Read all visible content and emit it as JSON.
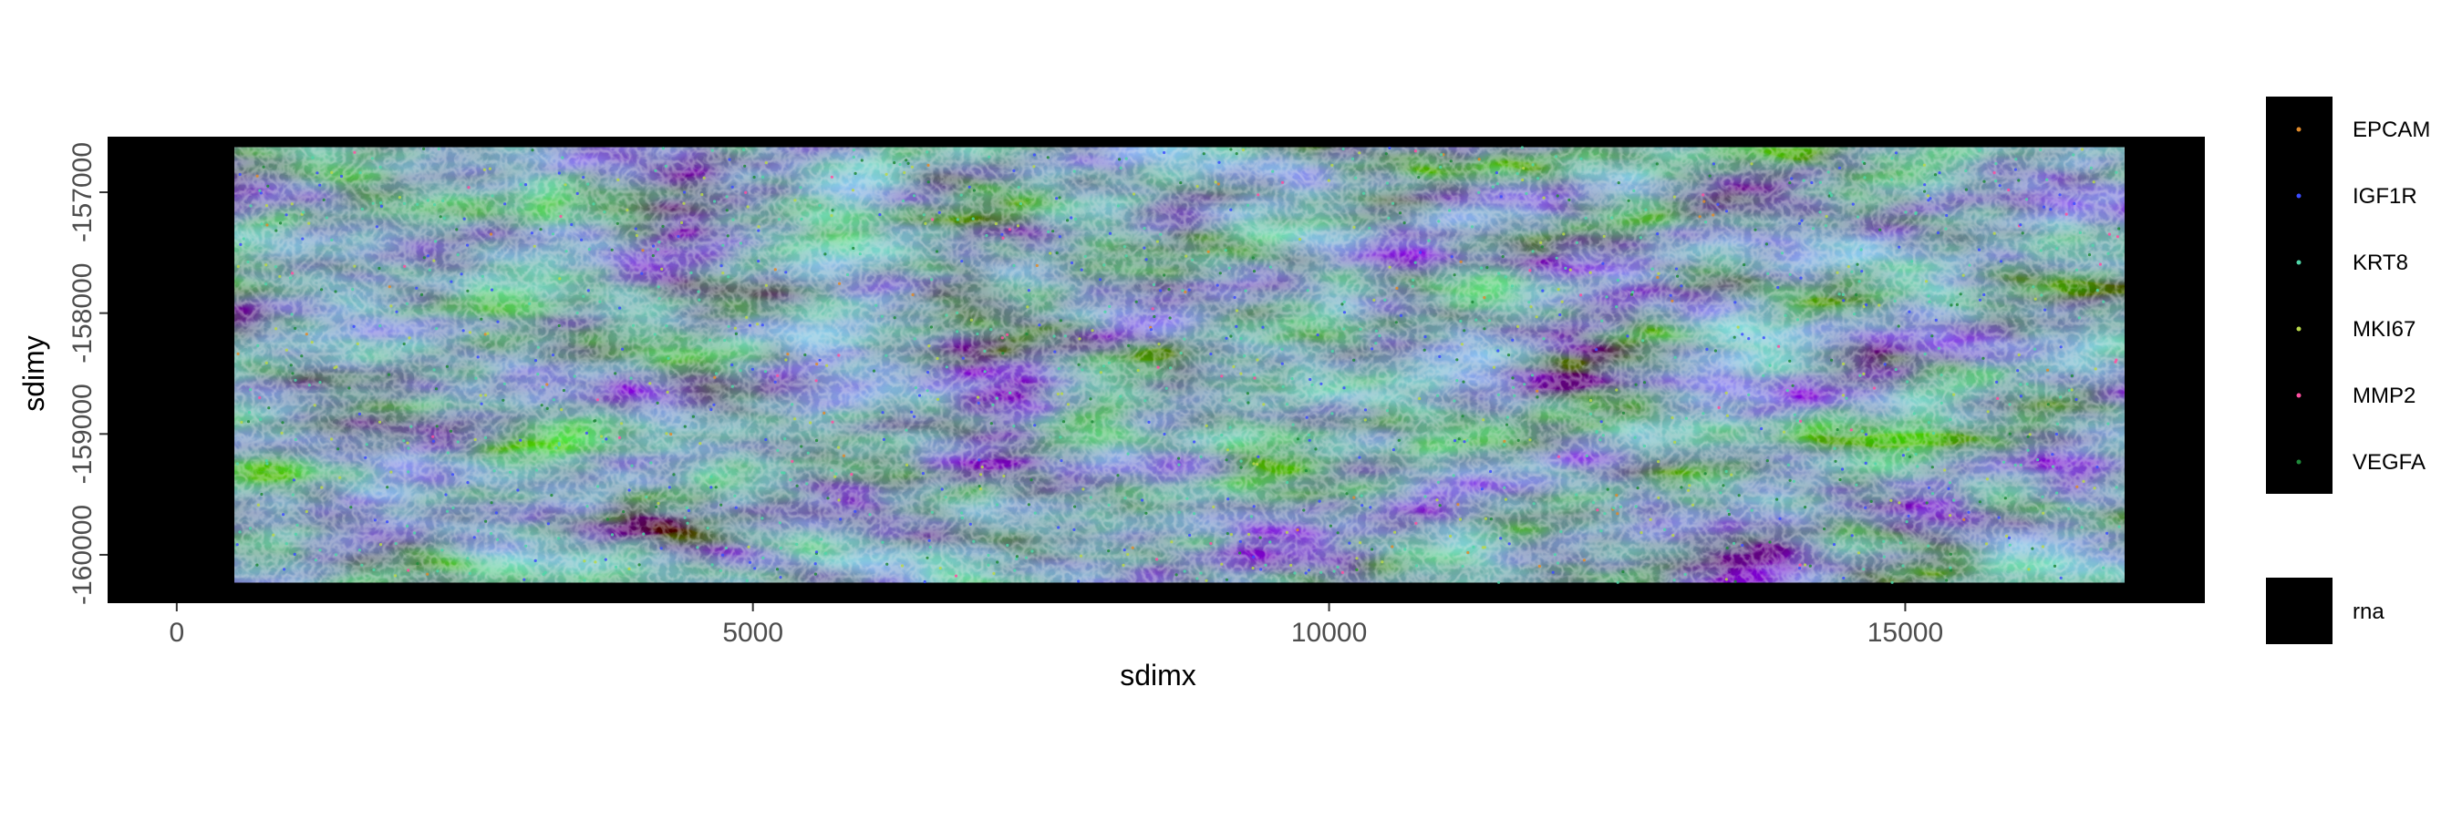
{
  "chart_data": {
    "type": "scatter",
    "title": "",
    "xlabel": "sdimx",
    "ylabel": "sdimy",
    "xlim": [
      -600,
      17600
    ],
    "ylim": [
      -160400,
      -156540
    ],
    "x_ticks": [
      0,
      5000,
      10000,
      15000
    ],
    "x_tick_labels": [
      "0",
      "5000",
      "10000",
      "15000"
    ],
    "y_ticks": [
      -160000,
      -159000,
      -158000,
      -157000
    ],
    "y_tick_labels": [
      "-160000",
      "-159000",
      "-158000",
      "-157000"
    ],
    "image_extent": {
      "x": [
        500,
        16900
      ],
      "y": [
        -160230,
        -156630
      ]
    },
    "background": "#000000",
    "grid": false,
    "legend_position": "right",
    "series": [
      {
        "name": "EPCAM",
        "color": "#e08a2a"
      },
      {
        "name": "IGF1R",
        "color": "#3b4cff"
      },
      {
        "name": "KRT8",
        "color": "#4fd6a8"
      },
      {
        "name": "MKI67",
        "color": "#b8d84a"
      },
      {
        "name": "MMP2",
        "color": "#ff4fa0"
      },
      {
        "name": "VEGFA",
        "color": "#1f8a3a"
      }
    ],
    "image_layer": {
      "name": "rna",
      "color": "#000000"
    }
  }
}
